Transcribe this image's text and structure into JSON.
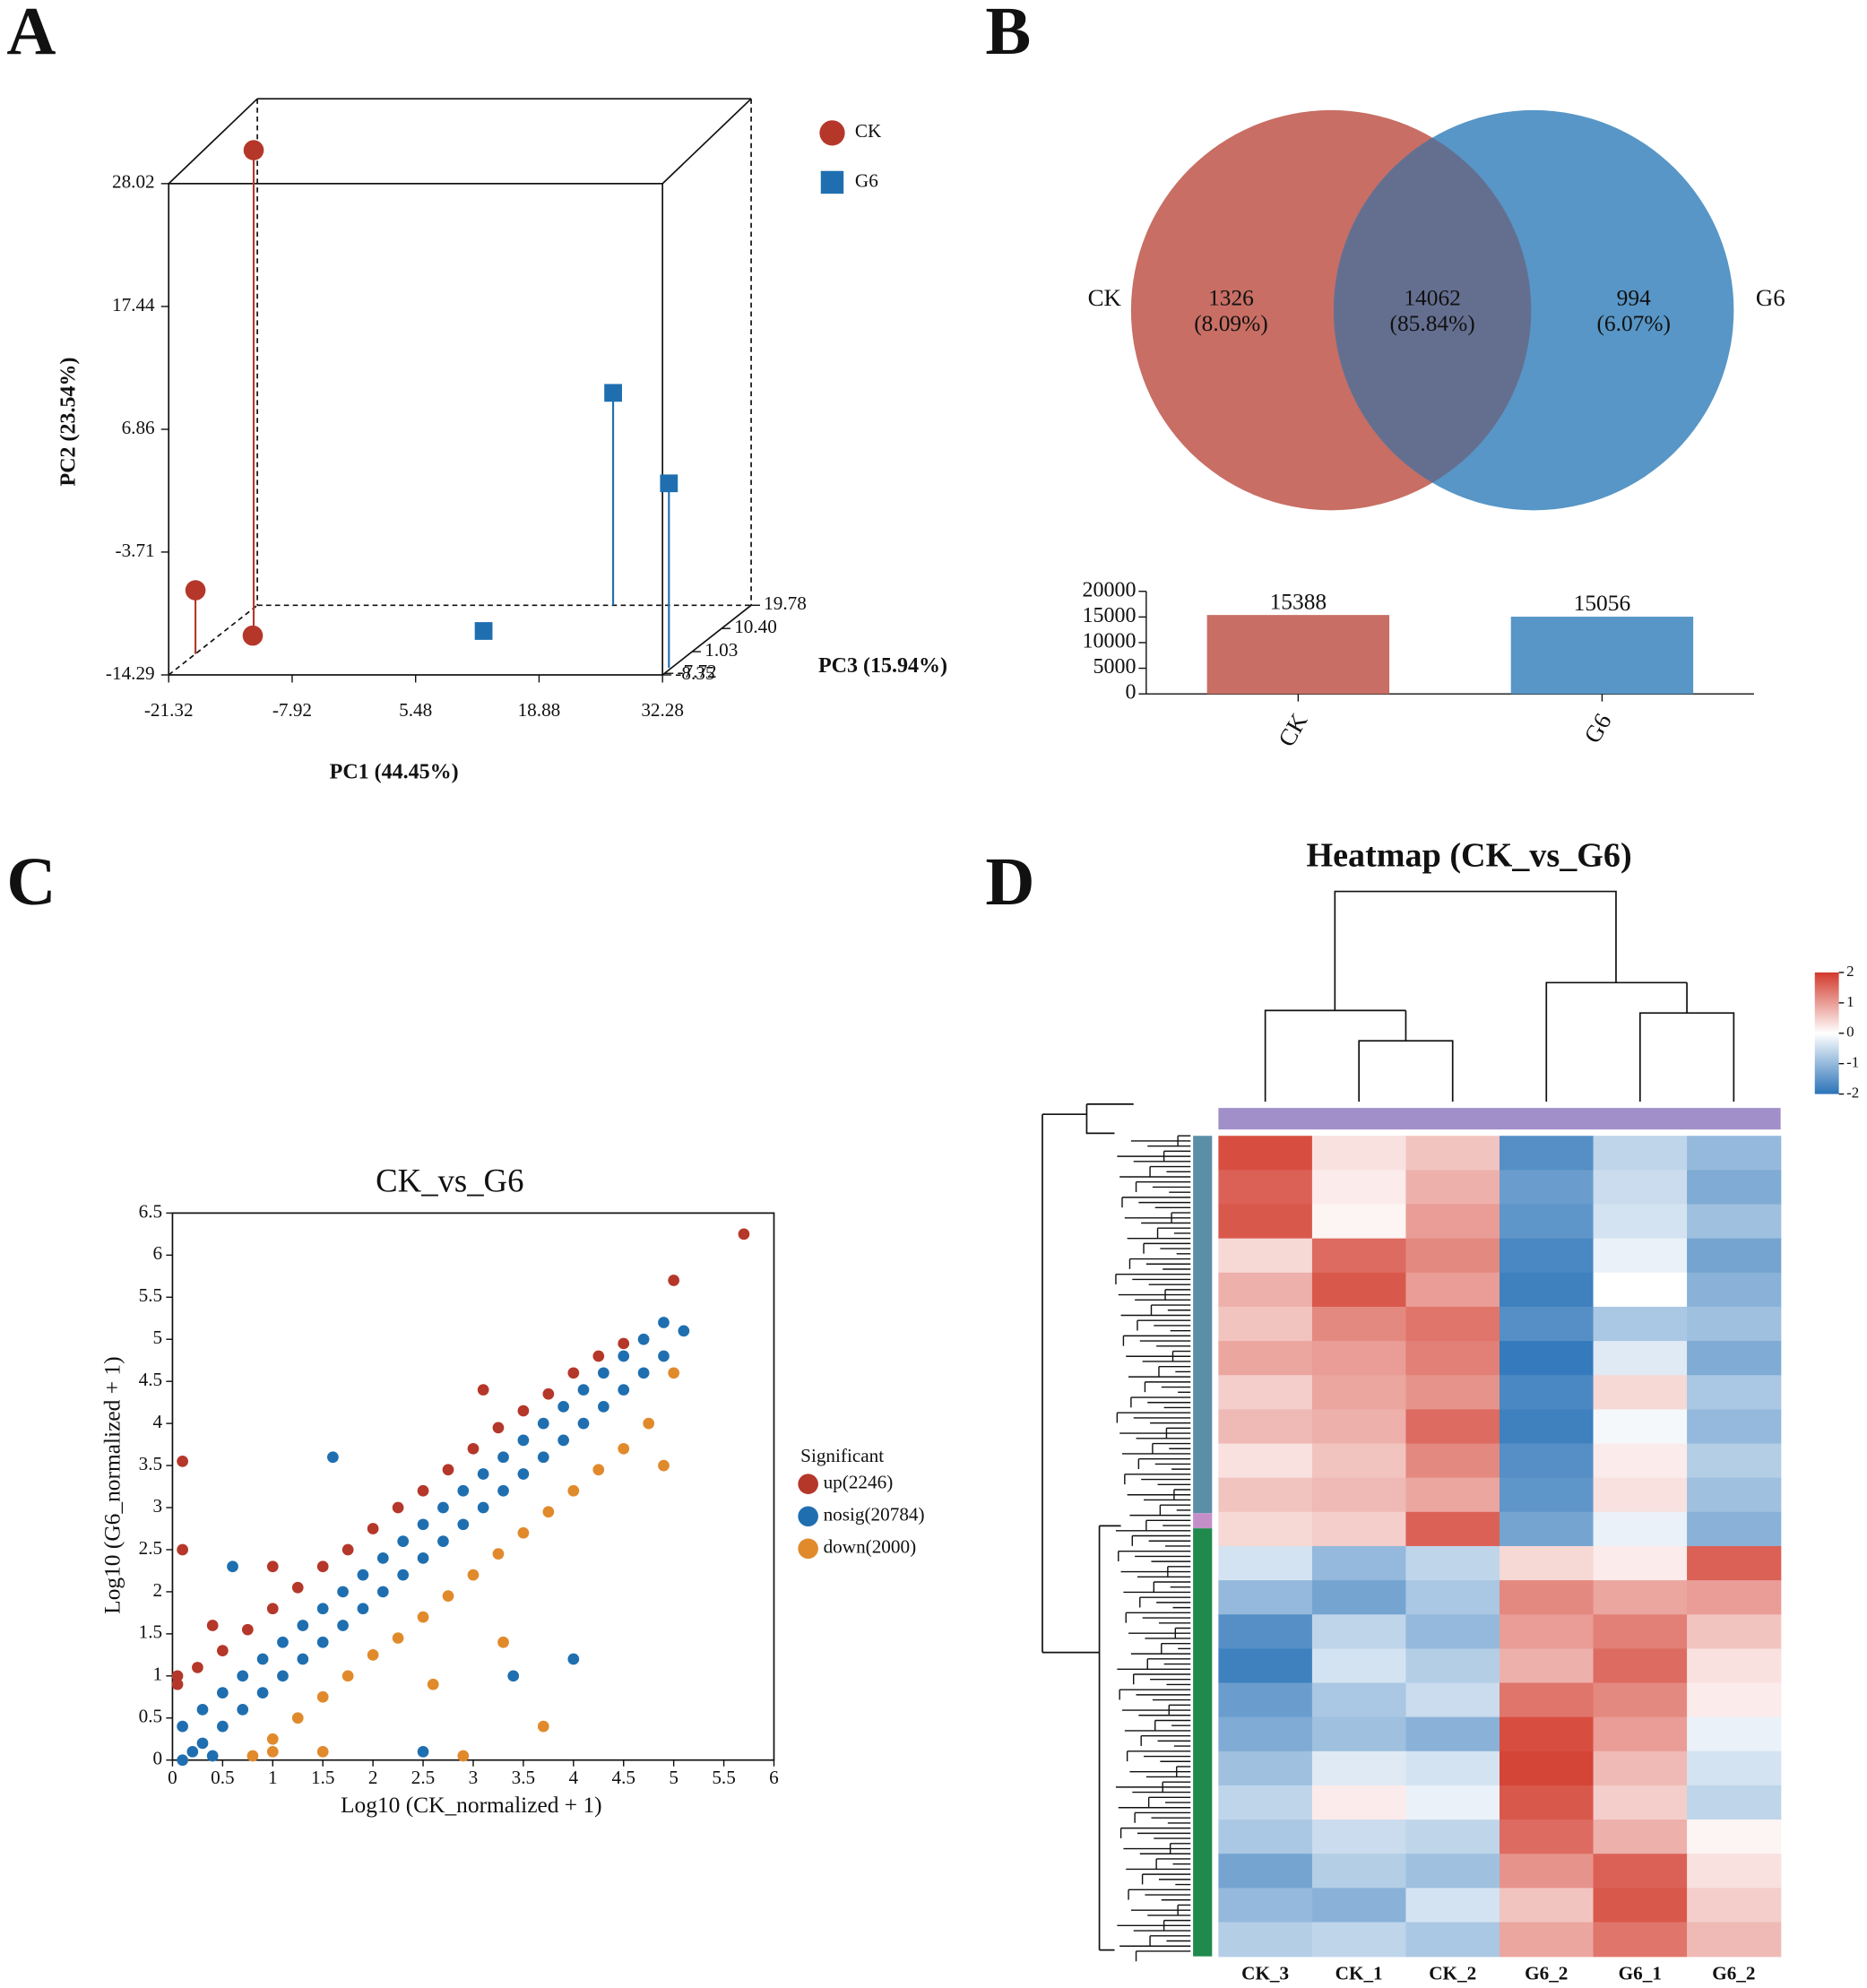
{
  "panel_labels": [
    "A",
    "B",
    "C",
    "D"
  ],
  "chart_data": [
    {
      "type": "scatter3d",
      "xlabel": "PC1 (44.45%)",
      "ylabel": "PC2 (23.54%)",
      "zlabel": "PC3 (15.94%)",
      "xlim": [
        -21.32,
        32.28
      ],
      "xticks": [
        -21.32,
        -7.92,
        5.48,
        18.88,
        32.28
      ],
      "ylim": [
        -14.29,
        28.02
      ],
      "yticks": [
        -14.29,
        -3.71,
        6.86,
        17.44,
        28.02
      ],
      "zlim": [
        -8.35,
        19.78
      ],
      "zticks": [
        -7.72,
        -8.35,
        1.03,
        {
          "value": 10.4,
          "label": "10.40"
        },
        19.78
      ],
      "series": [
        {
          "name": "CK",
          "color": "#b5372a",
          "marker": "circle",
          "x": [
            -21.3,
            -16.9,
            -17.0
          ],
          "values": [
            -8.8,
            27.9,
            -13.9
          ],
          "z": [
            0.09,
            5.7,
            5.7
          ]
        },
        {
          "name": "G6",
          "color": "#1f6fb0",
          "marker": "square",
          "x": [
            17.3,
            32.0,
            7.1
          ],
          "values": [
            4.0,
            1.6,
            -14.1
          ],
          "z": [
            19.78,
            -5.5,
            8.5
          ]
        }
      ]
    },
    {
      "type": "venn",
      "sets": [
        "CK",
        "G6"
      ],
      "colors": [
        "#c86e64",
        "#5796c6"
      ],
      "overlap_color": "#646f90",
      "values": [
        1326,
        14062,
        994
      ],
      "percent_labels": [
        "(8.09%)",
        "(85.84%)",
        "(6.07%)"
      ]
    },
    {
      "type": "bar",
      "categories": [
        "CK",
        "G6"
      ],
      "values": [
        15388,
        15056
      ],
      "colors": [
        "#c86e64",
        "#5796c6"
      ],
      "ylim": [
        0,
        20000
      ],
      "yticks": [
        0,
        5000,
        10000,
        15000,
        20000
      ]
    },
    {
      "type": "scatter",
      "title": "CK_vs_G6",
      "xlabel": "Log10 (CK_normalized + 1)",
      "ylabel": "Log10 (G6_normalized + 1)",
      "legend_title": "Significant",
      "xlim": [
        0,
        6
      ],
      "xticks": [
        0,
        0.5,
        1,
        1.5,
        2,
        2.5,
        3,
        3.5,
        4,
        4.5,
        5,
        5.5,
        6
      ],
      "ylim": [
        0,
        6.5
      ],
      "yticks": [
        0,
        0.5,
        1,
        1.5,
        2,
        2.5,
        3,
        3.5,
        4,
        4.5,
        5,
        5.5,
        6,
        6.5
      ],
      "series": [
        {
          "name": "up(2246)",
          "color": "#b5372a",
          "x": [
            0.05,
            0.25,
            0.5,
            0.75,
            1.0,
            1.25,
            1.5,
            1.75,
            2.0,
            2.25,
            2.5,
            2.75,
            3.0,
            3.25,
            3.5,
            3.75,
            4.0,
            4.25,
            4.5,
            0.1,
            0.1,
            1.0,
            5.0,
            5.7,
            3.1,
            0.4,
            0.05
          ],
          "values": [
            0.9,
            1.1,
            1.3,
            1.55,
            1.8,
            2.05,
            2.3,
            2.5,
            2.75,
            3.0,
            3.2,
            3.45,
            3.7,
            3.95,
            4.15,
            4.35,
            4.6,
            4.8,
            4.95,
            3.55,
            2.5,
            2.3,
            5.7,
            6.25,
            4.4,
            1.6,
            1.0
          ]
        },
        {
          "name": "nosig(20784)",
          "color": "#1f6fb0",
          "x": [
            0.1,
            0.3,
            0.5,
            0.7,
            0.9,
            1.1,
            1.3,
            1.5,
            1.7,
            1.9,
            2.1,
            2.3,
            2.5,
            2.7,
            2.9,
            3.1,
            3.3,
            3.5,
            3.7,
            3.9,
            4.1,
            4.3,
            4.5,
            4.7,
            4.9,
            0.1,
            0.3,
            0.5,
            0.7,
            0.9,
            1.1,
            1.3,
            1.5,
            1.7,
            1.9,
            2.1,
            2.3,
            2.5,
            2.7,
            2.9,
            3.1,
            3.3,
            3.5,
            3.7,
            3.9,
            4.1,
            4.3,
            4.5,
            4.7,
            4.9,
            0.6,
            1.6,
            2.5,
            4.0,
            3.4,
            5.1,
            0.2,
            0.4
          ],
          "values": [
            0.4,
            0.6,
            0.8,
            1.0,
            1.2,
            1.4,
            1.6,
            1.8,
            2.0,
            2.2,
            2.4,
            2.6,
            2.8,
            3.0,
            3.2,
            3.4,
            3.6,
            3.8,
            4.0,
            4.2,
            4.4,
            4.6,
            4.8,
            5.0,
            5.2,
            0.0,
            0.2,
            0.4,
            0.6,
            0.8,
            1.0,
            1.2,
            1.4,
            1.6,
            1.8,
            2.0,
            2.2,
            2.4,
            2.6,
            2.8,
            3.0,
            3.2,
            3.4,
            3.6,
            3.8,
            4.0,
            4.2,
            4.4,
            4.6,
            4.8,
            2.3,
            3.6,
            0.1,
            1.2,
            1.0,
            5.1,
            0.1,
            0.05
          ]
        },
        {
          "name": "down(2000)",
          "color": "#e08a2c",
          "x": [
            0.8,
            1.0,
            1.25,
            1.5,
            1.75,
            2.0,
            2.25,
            2.5,
            2.75,
            3.0,
            3.25,
            3.5,
            3.75,
            4.0,
            4.25,
            4.5,
            4.75,
            1.5,
            2.6,
            3.7,
            3.3,
            4.9,
            5.0,
            2.9,
            1.0
          ],
          "values": [
            0.05,
            0.25,
            0.5,
            0.75,
            1.0,
            1.25,
            1.45,
            1.7,
            1.95,
            2.2,
            2.45,
            2.7,
            2.95,
            3.2,
            3.45,
            3.7,
            4.0,
            0.1,
            0.9,
            0.4,
            1.4,
            3.5,
            4.6,
            0.05,
            0.1
          ]
        }
      ]
    },
    {
      "type": "heatmap",
      "title": "Heatmap (CK_vs_G6)",
      "columns": [
        "CK_3",
        "CK_1",
        "CK_2",
        "G6_2",
        "G6_1",
        "G6_2"
      ],
      "colorbar_lim": [
        -2,
        2
      ],
      "colorbar_ticks": [
        2,
        1,
        0,
        -1,
        -2
      ],
      "colors": [
        "#2a73b8",
        "#ffffff",
        "#d23a2c"
      ],
      "values": [
        [
          1.8,
          0.3,
          0.6,
          -1.6,
          -0.6,
          -1.0
        ],
        [
          1.6,
          0.2,
          0.8,
          -1.4,
          -0.5,
          -1.2
        ],
        [
          1.7,
          0.1,
          1.0,
          -1.5,
          -0.4,
          -0.9
        ],
        [
          0.4,
          1.5,
          1.2,
          -1.7,
          -0.2,
          -1.3
        ],
        [
          0.8,
          1.7,
          1.0,
          -1.8,
          0.0,
          -1.1
        ],
        [
          0.6,
          1.2,
          1.4,
          -1.6,
          -0.8,
          -0.9
        ],
        [
          0.9,
          1.0,
          1.3,
          -1.9,
          -0.3,
          -1.2
        ],
        [
          0.5,
          0.9,
          1.1,
          -1.7,
          0.4,
          -0.8
        ],
        [
          0.7,
          0.8,
          1.5,
          -1.8,
          -0.1,
          -1.0
        ],
        [
          0.3,
          0.6,
          1.2,
          -1.6,
          0.2,
          -0.7
        ],
        [
          0.6,
          0.7,
          0.9,
          -1.5,
          0.3,
          -0.9
        ],
        [
          0.4,
          0.5,
          1.6,
          -1.3,
          -0.2,
          -1.1
        ],
        [
          -0.4,
          -1.0,
          -0.6,
          0.4,
          0.2,
          1.6
        ],
        [
          -1.0,
          -1.3,
          -0.8,
          1.2,
          0.9,
          1.0
        ],
        [
          -1.6,
          -0.6,
          -1.0,
          1.0,
          1.3,
          0.6
        ],
        [
          -1.8,
          -0.4,
          -0.7,
          0.8,
          1.5,
          0.3
        ],
        [
          -1.4,
          -0.8,
          -0.5,
          1.4,
          1.2,
          0.2
        ],
        [
          -1.2,
          -0.9,
          -1.1,
          1.8,
          1.0,
          -0.2
        ],
        [
          -0.9,
          -0.3,
          -0.4,
          1.9,
          0.7,
          -0.4
        ],
        [
          -0.6,
          0.2,
          -0.2,
          1.7,
          0.5,
          -0.6
        ],
        [
          -0.8,
          -0.5,
          -0.6,
          1.5,
          0.8,
          0.1
        ],
        [
          -1.3,
          -0.7,
          -0.9,
          1.1,
          1.6,
          0.3
        ],
        [
          -1.0,
          -1.1,
          -0.4,
          0.6,
          1.7,
          0.5
        ],
        [
          -0.7,
          -0.6,
          -0.8,
          0.9,
          1.4,
          0.7
        ]
      ]
    }
  ]
}
